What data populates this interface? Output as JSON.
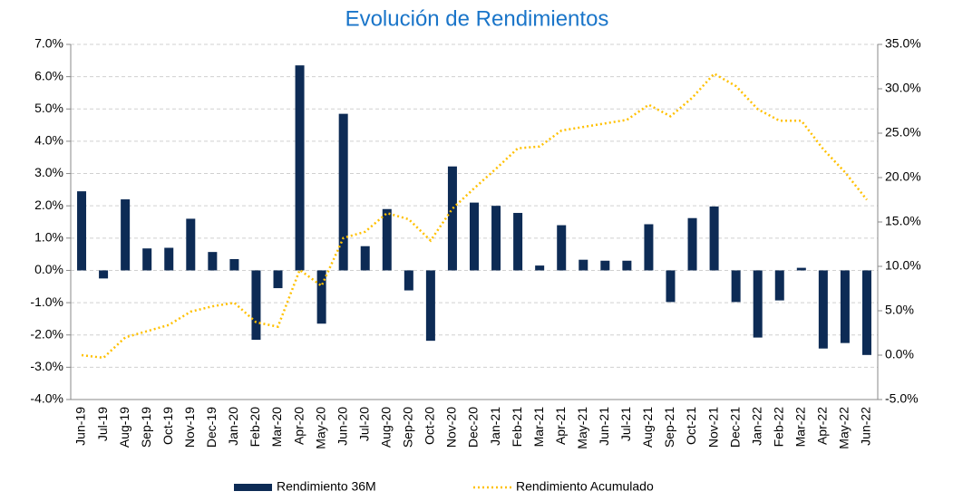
{
  "chart_data": {
    "type": "bar_line",
    "title": "Evolución de Rendimientos",
    "categories": [
      "Jun-19",
      "Jul-19",
      "Aug-19",
      "Sep-19",
      "Oct-19",
      "Nov-19",
      "Dec-19",
      "Jan-20",
      "Feb-20",
      "Mar-20",
      "Apr-20",
      "May-20",
      "Jun-20",
      "Jul-20",
      "Aug-20",
      "Sep-20",
      "Oct-20",
      "Nov-20",
      "Dec-20",
      "Jan-21",
      "Feb-21",
      "Mar-21",
      "Apr-21",
      "May-21",
      "Jun-21",
      "Jul-21",
      "Aug-21",
      "Sep-21",
      "Oct-21",
      "Nov-21",
      "Dec-21",
      "Jan-22",
      "Feb-22",
      "Mar-22",
      "Apr-22",
      "May-22",
      "Jun-22"
    ],
    "series": [
      {
        "name": "Rendimiento 36M",
        "color": "#0d2b55",
        "type": "bar",
        "values": [
          2.45,
          -0.25,
          2.2,
          0.68,
          0.7,
          1.6,
          0.57,
          0.35,
          -2.15,
          -0.55,
          6.35,
          -1.65,
          4.85,
          0.75,
          1.9,
          -0.62,
          -2.18,
          3.22,
          2.1,
          2.0,
          1.78,
          0.15,
          1.4,
          0.33,
          0.3,
          0.3,
          1.43,
          -0.98,
          1.62,
          1.98,
          -0.98,
          -2.08,
          -0.93,
          0.08,
          -2.42,
          -2.25,
          -2.62
        ]
      },
      {
        "name": "Rendimiento Acumulado",
        "color": "#ffc000",
        "type": "line",
        "axis": "y2",
        "values": [
          0.0,
          -0.3,
          2.0,
          2.7,
          3.4,
          4.9,
          5.5,
          5.9,
          3.7,
          3.2,
          9.6,
          7.8,
          13.2,
          13.9,
          16.0,
          15.3,
          12.9,
          16.5,
          18.8,
          21.0,
          23.3,
          23.5,
          25.3,
          25.7,
          26.1,
          26.5,
          28.2,
          26.9,
          29.0,
          31.7,
          30.3,
          27.7,
          26.4,
          26.4,
          23.2,
          20.6,
          17.5
        ]
      }
    ],
    "ylim": [
      -4,
      7
    ],
    "yticks": [
      {
        "value": -4,
        "label": "-4.0%"
      },
      {
        "value": -3,
        "label": "-3.0%"
      },
      {
        "value": -2,
        "label": "-2.0%"
      },
      {
        "value": -1,
        "label": "-1.0%"
      },
      {
        "value": 0,
        "label": "0.0%"
      },
      {
        "value": 1,
        "label": "1.0%"
      },
      {
        "value": 2,
        "label": "2.0%"
      },
      {
        "value": 3,
        "label": "3.0%"
      },
      {
        "value": 4,
        "label": "4.0%"
      },
      {
        "value": 5,
        "label": "5.0%"
      },
      {
        "value": 6,
        "label": "6.0%"
      },
      {
        "value": 7,
        "label": "7.0%"
      }
    ],
    "y2lim": [
      -5,
      35
    ],
    "y2ticks": [
      {
        "value": -5,
        "label": "-5.0%"
      },
      {
        "value": 0,
        "label": "0.0%"
      },
      {
        "value": 5,
        "label": "5.0%"
      },
      {
        "value": 10,
        "label": "10.0%"
      },
      {
        "value": 15,
        "label": "15.0%"
      },
      {
        "value": 20,
        "label": "20.0%"
      },
      {
        "value": 25,
        "label": "25.0%"
      },
      {
        "value": 30,
        "label": "30.0%"
      },
      {
        "value": 35,
        "label": "35.0%"
      }
    ],
    "grid": true,
    "legend": "bottom"
  }
}
